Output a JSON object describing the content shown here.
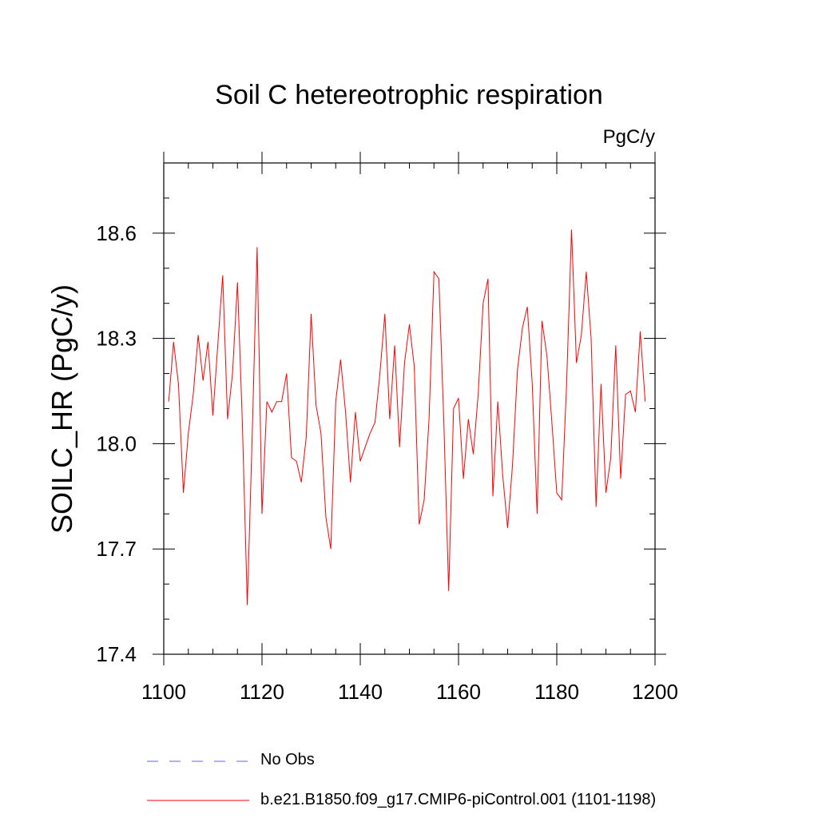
{
  "chart_data": {
    "type": "line",
    "title": "Soil C hetereotrophic respiration",
    "units_label": "PgC/y",
    "ylabel": "SOILC_HR  (PgC/y)",
    "xlabel": "",
    "xlim": [
      1100,
      1200
    ],
    "ylim": [
      17.4,
      18.8
    ],
    "x_ticks": [
      1100,
      1120,
      1140,
      1160,
      1180,
      1200
    ],
    "x_tick_labels": [
      "1100",
      "1120",
      "1140",
      "1160",
      "1180",
      "1200"
    ],
    "y_ticks": [
      17.4,
      17.7,
      18.0,
      18.3,
      18.6
    ],
    "y_tick_labels": [
      "17.4",
      "17.7",
      "18.0",
      "18.3",
      "18.6"
    ],
    "grid": false,
    "series": [
      {
        "name": "b.e21.B1850.f09_g17.CMIP6-piControl.001 (1101-1198)",
        "color": "#ff0000",
        "x": [
          1101,
          1102,
          1103,
          1104,
          1105,
          1106,
          1107,
          1108,
          1109,
          1110,
          1111,
          1112,
          1113,
          1114,
          1115,
          1116,
          1117,
          1118,
          1119,
          1120,
          1121,
          1122,
          1123,
          1124,
          1125,
          1126,
          1127,
          1128,
          1129,
          1130,
          1131,
          1132,
          1133,
          1134,
          1135,
          1136,
          1137,
          1138,
          1139,
          1140,
          1141,
          1142,
          1143,
          1144,
          1145,
          1146,
          1147,
          1148,
          1149,
          1150,
          1151,
          1152,
          1153,
          1154,
          1155,
          1156,
          1157,
          1158,
          1159,
          1160,
          1161,
          1162,
          1163,
          1164,
          1165,
          1166,
          1167,
          1168,
          1169,
          1170,
          1171,
          1172,
          1173,
          1174,
          1175,
          1176,
          1177,
          1178,
          1179,
          1180,
          1181,
          1182,
          1183,
          1184,
          1185,
          1186,
          1187,
          1188,
          1189,
          1190,
          1191,
          1192,
          1193,
          1194,
          1195,
          1196,
          1197,
          1198
        ],
        "values": [
          18.12,
          18.29,
          18.17,
          17.86,
          18.03,
          18.14,
          18.31,
          18.18,
          18.29,
          18.08,
          18.28,
          18.48,
          18.07,
          18.2,
          18.46,
          18.06,
          17.54,
          18.02,
          18.56,
          17.8,
          18.12,
          18.09,
          18.12,
          18.12,
          18.2,
          17.96,
          17.95,
          17.89,
          18.02,
          18.37,
          18.11,
          18.03,
          17.79,
          17.7,
          18.12,
          18.24,
          18.09,
          17.89,
          18.09,
          17.95,
          17.99,
          18.03,
          18.06,
          18.2,
          18.37,
          18.07,
          18.28,
          17.99,
          18.23,
          18.34,
          18.22,
          17.77,
          17.84,
          18.07,
          18.49,
          18.47,
          18.07,
          17.58,
          18.1,
          18.13,
          17.9,
          18.07,
          17.97,
          18.14,
          18.4,
          18.47,
          17.85,
          18.12,
          17.91,
          17.76,
          17.94,
          18.21,
          18.33,
          18.39,
          18.17,
          17.8,
          18.35,
          18.25,
          18.06,
          17.86,
          17.84,
          18.17,
          18.61,
          18.23,
          18.31,
          18.49,
          18.3,
          17.82,
          18.17,
          17.86,
          17.96,
          18.28,
          17.9,
          18.14,
          18.15,
          18.09,
          18.32,
          18.12
        ]
      }
    ],
    "legend": [
      {
        "label": "No Obs",
        "color": "#8080ff",
        "style": "dashed"
      },
      {
        "label": "b.e21.B1850.f09_g17.CMIP6-piControl.001 (1101-1198)",
        "color": "#ff0000",
        "style": "solid"
      }
    ]
  }
}
